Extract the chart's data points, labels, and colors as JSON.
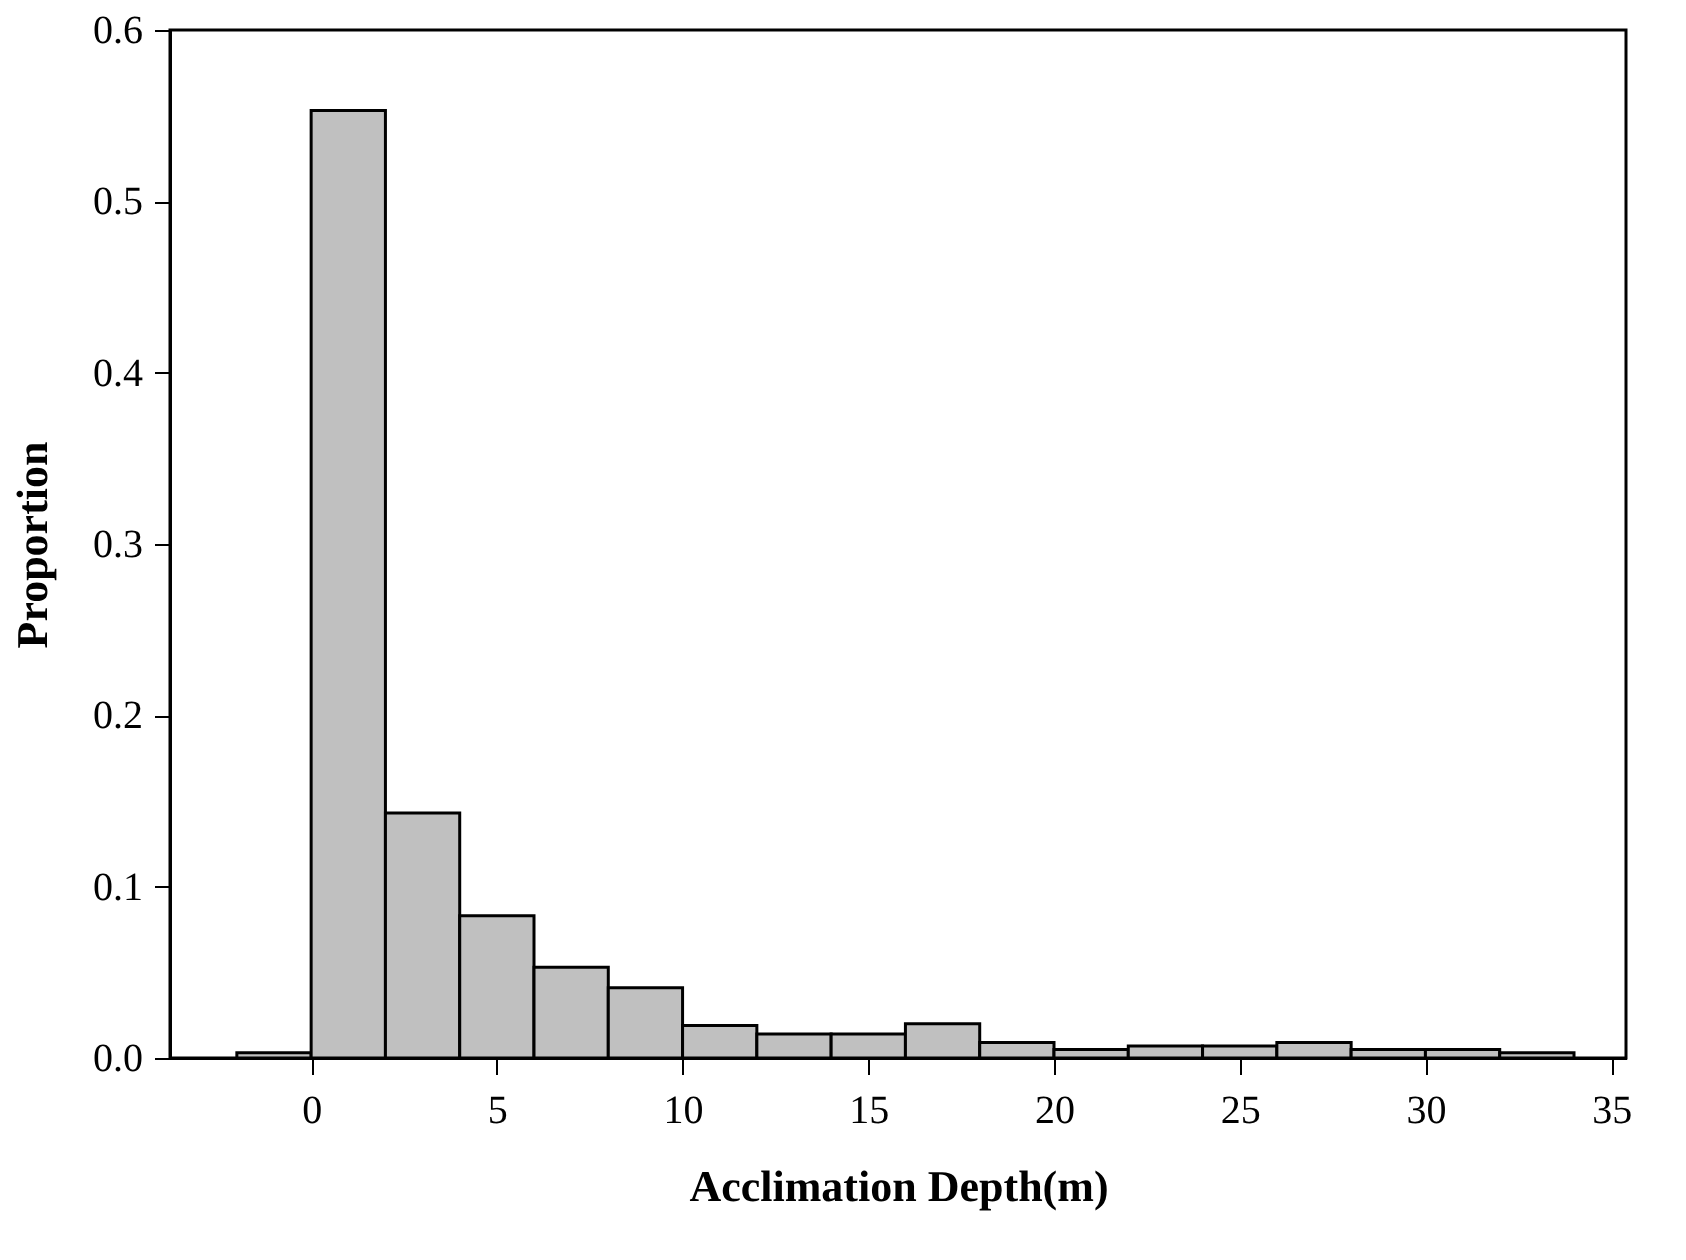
{
  "chart_data": {
    "type": "histogram",
    "xlabel": "Acclimation Depth(m)",
    "ylabel": "Proportion",
    "bins": [
      -2,
      0,
      2,
      4,
      6,
      8,
      10,
      12,
      14,
      16,
      18,
      20,
      22,
      24,
      26,
      28,
      30,
      32,
      34
    ],
    "values": [
      0.003,
      0.553,
      0.143,
      0.083,
      0.053,
      0.041,
      0.019,
      0.014,
      0.014,
      0.02,
      0.009,
      0.005,
      0.007,
      0.007,
      0.009,
      0.005,
      0.005,
      0.003
    ],
    "color": "#c0c0c0",
    "xlim": [
      -3.8,
      35.4
    ],
    "xticks": [
      0,
      5,
      10,
      15,
      20,
      25,
      30,
      35
    ],
    "ylim": [
      0,
      0.6
    ],
    "yticks": [
      {
        "value": 0,
        "label": "0.0"
      },
      0.1,
      0.2,
      0.3,
      0.4,
      0.5,
      0.6
    ],
    "grid": false
  }
}
